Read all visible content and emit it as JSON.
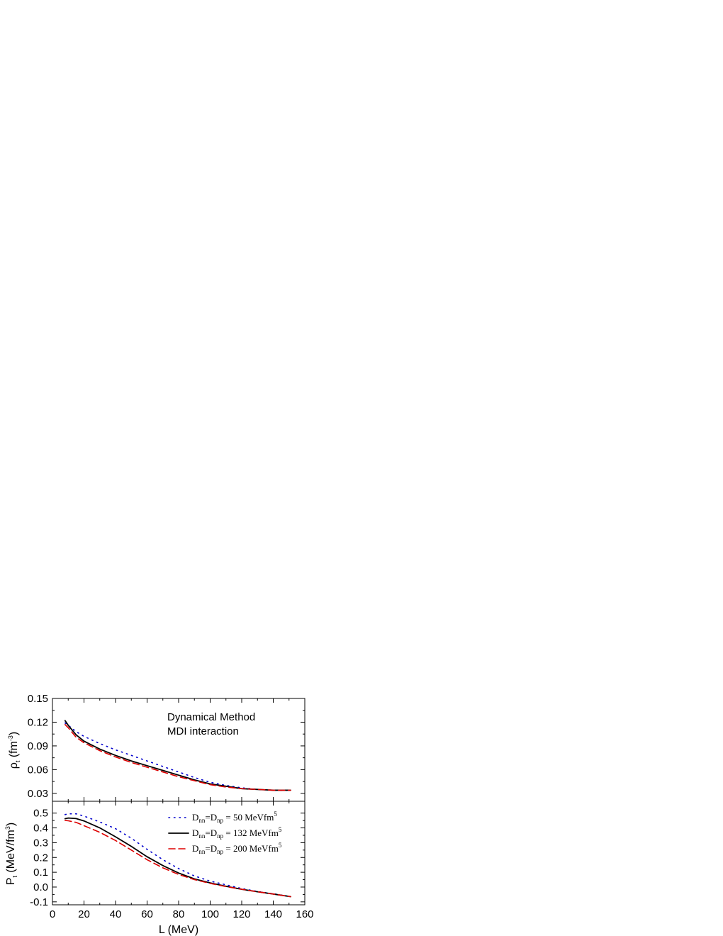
{
  "chart_data": [
    {
      "type": "line",
      "panel": "top",
      "annotations": [
        "Dynamical Method",
        "MDI interaction"
      ],
      "ylabel": {
        "symbol": "ρ",
        "sub": "t",
        "unit_pre": " (fm",
        "unit_sup": "-3",
        "unit_post": ")"
      },
      "xlim": [
        0,
        160
      ],
      "ylim": [
        0.02,
        0.15
      ],
      "yticks": [
        0.03,
        0.06,
        0.09,
        0.12,
        0.15
      ],
      "ytick_labels": [
        "0.03",
        "0.06",
        "0.09",
        "0.12",
        "0.15"
      ],
      "grid": false,
      "series": [
        {
          "style": "dotted",
          "color": "#0000cc",
          "x": [
            8,
            10,
            15,
            20,
            30,
            40,
            50,
            60,
            70,
            80,
            90,
            100,
            110,
            120,
            130,
            140,
            151
          ],
          "y": [
            0.119,
            0.116,
            0.108,
            0.102,
            0.093,
            0.085,
            0.078,
            0.071,
            0.064,
            0.057,
            0.05,
            0.044,
            0.04,
            0.037,
            0.035,
            0.034,
            0.034
          ]
        },
        {
          "style": "solid",
          "color": "#000000",
          "x": [
            8,
            10,
            15,
            20,
            30,
            40,
            50,
            60,
            70,
            80,
            90,
            100,
            110,
            120,
            130,
            140,
            151
          ],
          "y": [
            0.122,
            0.116,
            0.104,
            0.096,
            0.086,
            0.078,
            0.071,
            0.065,
            0.059,
            0.053,
            0.047,
            0.042,
            0.039,
            0.036,
            0.035,
            0.034,
            0.034
          ]
        },
        {
          "style": "dashed",
          "color": "#dd0000",
          "x": [
            8,
            10,
            15,
            20,
            30,
            40,
            50,
            60,
            70,
            80,
            90,
            100,
            110,
            120,
            130,
            140,
            151
          ],
          "y": [
            0.117,
            0.113,
            0.101,
            0.094,
            0.084,
            0.076,
            0.069,
            0.063,
            0.057,
            0.051,
            0.046,
            0.041,
            0.038,
            0.036,
            0.035,
            0.034,
            0.034
          ]
        }
      ]
    },
    {
      "type": "line",
      "panel": "bottom",
      "xlabel": "L (MeV)",
      "ylabel": {
        "symbol": "P",
        "sub": "t",
        "unit_pre": " (MeV/fm",
        "unit_sup": "3",
        "unit_post": ")"
      },
      "xlim": [
        0,
        160
      ],
      "ylim": [
        -0.12,
        0.58
      ],
      "xticks": [
        0,
        20,
        40,
        60,
        80,
        100,
        120,
        140,
        160
      ],
      "xtick_labels": [
        "0",
        "20",
        "40",
        "60",
        "80",
        "100",
        "120",
        "140",
        "160"
      ],
      "yticks": [
        -0.1,
        0.0,
        0.1,
        0.2,
        0.3,
        0.4,
        0.5
      ],
      "ytick_labels": [
        "-0.1",
        "0.0",
        "0.1",
        "0.2",
        "0.3",
        "0.4",
        "0.5"
      ],
      "grid": false,
      "legend_position": "top-right",
      "series": [
        {
          "name_parts": [
            "D",
            "nn",
            "=D",
            "np",
            " = 50   MeVfm",
            "5"
          ],
          "style": "dotted",
          "color": "#0000cc",
          "x": [
            8,
            10,
            15,
            20,
            30,
            40,
            50,
            60,
            70,
            80,
            90,
            100,
            110,
            120,
            130,
            140,
            151
          ],
          "y": [
            0.49,
            0.495,
            0.495,
            0.48,
            0.44,
            0.395,
            0.33,
            0.255,
            0.185,
            0.125,
            0.075,
            0.04,
            0.015,
            -0.01,
            -0.03,
            -0.045,
            -0.065
          ]
        },
        {
          "name_parts": [
            "D",
            "nn",
            "=D",
            "np",
            " = 132 MeVfm",
            "5"
          ],
          "style": "solid",
          "color": "#000000",
          "x": [
            8,
            10,
            15,
            20,
            30,
            40,
            50,
            60,
            70,
            80,
            90,
            100,
            110,
            120,
            130,
            140,
            151
          ],
          "y": [
            0.462,
            0.467,
            0.463,
            0.447,
            0.4,
            0.34,
            0.275,
            0.205,
            0.145,
            0.095,
            0.055,
            0.028,
            0.005,
            -0.015,
            -0.032,
            -0.047,
            -0.065
          ]
        },
        {
          "name_parts": [
            "D",
            "nn",
            "=D",
            "np",
            " = 200 MeVfm",
            "5"
          ],
          "style": "dashed",
          "color": "#dd0000",
          "x": [
            8,
            10,
            15,
            20,
            30,
            40,
            50,
            60,
            70,
            80,
            90,
            100,
            110,
            120,
            130,
            140,
            151
          ],
          "y": [
            0.45,
            0.448,
            0.437,
            0.415,
            0.37,
            0.315,
            0.25,
            0.185,
            0.13,
            0.085,
            0.05,
            0.025,
            0.003,
            -0.015,
            -0.032,
            -0.047,
            -0.065
          ]
        }
      ]
    }
  ]
}
